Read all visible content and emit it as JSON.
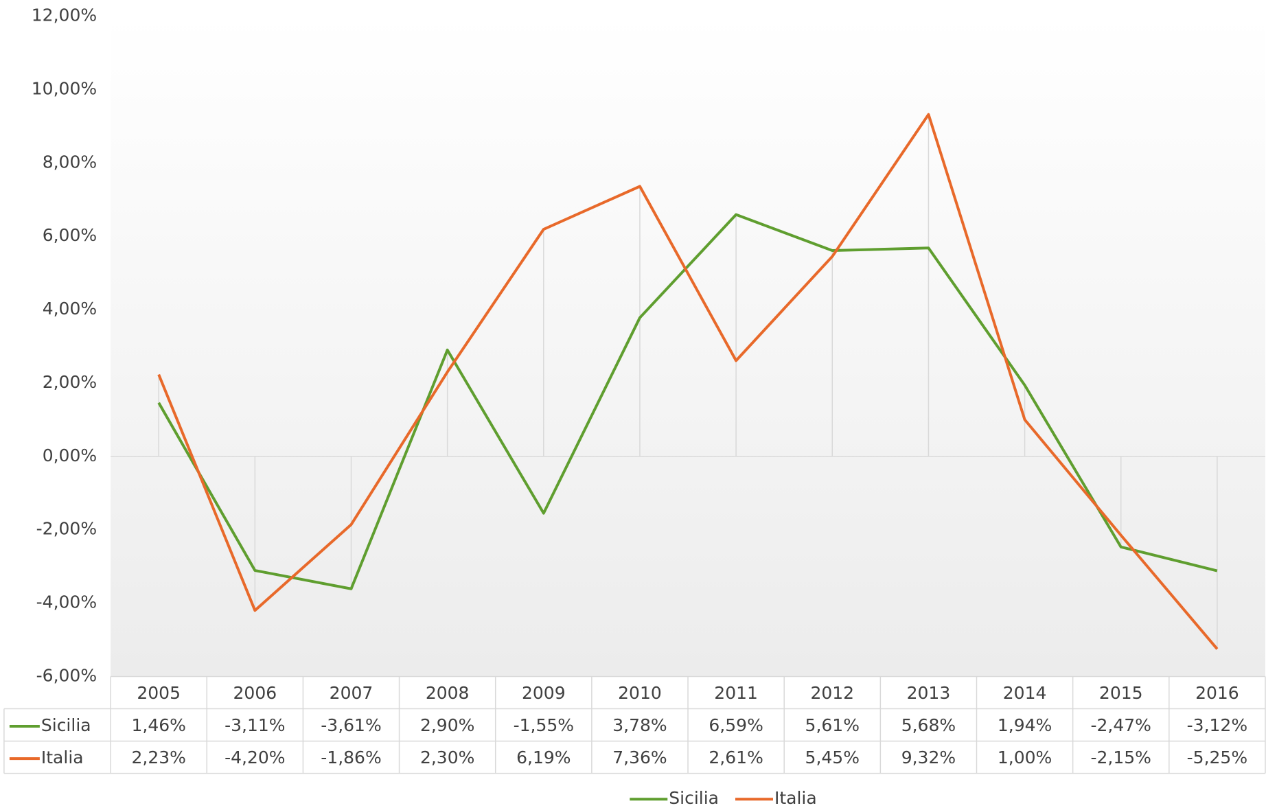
{
  "chart_data": {
    "type": "line",
    "categories": [
      "2005",
      "2006",
      "2007",
      "2008",
      "2009",
      "2010",
      "2011",
      "2012",
      "2013",
      "2014",
      "2015",
      "2016"
    ],
    "series": [
      {
        "name": "Sicilia",
        "color": "#5f9e2f",
        "values": [
          1.46,
          -3.11,
          -3.61,
          2.9,
          -1.55,
          3.78,
          6.59,
          5.61,
          5.68,
          1.94,
          -2.47,
          -3.12
        ],
        "value_labels": [
          "1,46%",
          "-3,11%",
          "-3,61%",
          "2,90%",
          "-1,55%",
          "3,78%",
          "6,59%",
          "5,61%",
          "5,68%",
          "1,94%",
          "-2,47%",
          "-3,12%"
        ]
      },
      {
        "name": "Italia",
        "color": "#e8692a",
        "values": [
          2.23,
          -4.2,
          -1.86,
          2.3,
          6.19,
          7.36,
          2.61,
          5.45,
          9.32,
          1.0,
          -2.15,
          -5.25
        ],
        "value_labels": [
          "2,23%",
          "-4,20%",
          "-1,86%",
          "2,30%",
          "6,19%",
          "7,36%",
          "2,61%",
          "5,45%",
          "9,32%",
          "1,00%",
          "-2,15%",
          "-5,25%"
        ]
      }
    ],
    "ylim": [
      -6,
      12
    ],
    "yticks": [
      {
        "value": -6,
        "label": "-6,00%"
      },
      {
        "value": -4,
        "label": "-4,00%"
      },
      {
        "value": -2,
        "label": "-2,00%"
      },
      {
        "value": 0,
        "label": "0,00%"
      },
      {
        "value": 2,
        "label": "2,00%"
      },
      {
        "value": 4,
        "label": "4,00%"
      },
      {
        "value": 6,
        "label": "6,00%"
      },
      {
        "value": 8,
        "label": "8,00%"
      },
      {
        "value": 10,
        "label": "10,00%"
      },
      {
        "value": 12,
        "label": "12,00%"
      }
    ],
    "drop_lines": true,
    "data_table": true,
    "legend": "bottom"
  }
}
